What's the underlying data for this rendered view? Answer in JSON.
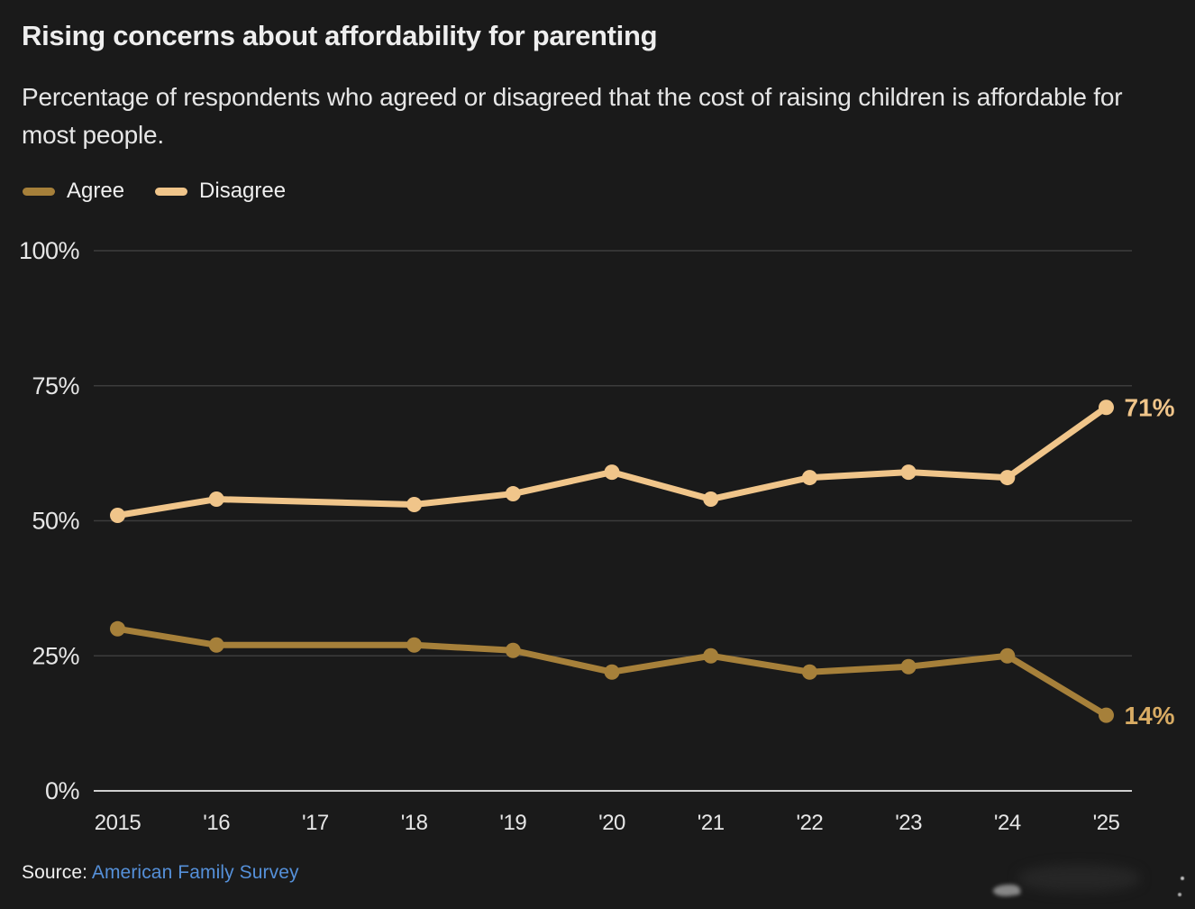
{
  "chart_data": {
    "type": "line",
    "title": "Rising concerns about affordability for parenting",
    "subtitle": "Percentage of respondents who agreed or disagreed that the cost of raising children is affordable for most people.",
    "x_tick_labels": [
      "2015",
      "'16",
      "'17",
      "'18",
      "'19",
      "'20",
      "'21",
      "'22",
      "'23",
      "'24",
      "'25"
    ],
    "x_years": [
      2015,
      2016,
      2017,
      2018,
      2019,
      2020,
      2021,
      2022,
      2023,
      2024,
      2025
    ],
    "y_tick_labels": [
      "100%",
      "75%",
      "50%",
      "25%",
      "0%"
    ],
    "y_ticks": [
      100,
      75,
      50,
      25,
      0
    ],
    "ylim": [
      0,
      100
    ],
    "grid": "horizontal",
    "legend_position": "top-left",
    "missing_years": [
      2017
    ],
    "series": [
      {
        "name": "Agree",
        "color": "#a6803a",
        "label_color": "#d8ab63",
        "end_label": "14%",
        "points": [
          {
            "year": 2015,
            "value": 30
          },
          {
            "year": 2016,
            "value": 27
          },
          {
            "year": 2018,
            "value": 27
          },
          {
            "year": 2019,
            "value": 26
          },
          {
            "year": 2020,
            "value": 22
          },
          {
            "year": 2021,
            "value": 25
          },
          {
            "year": 2022,
            "value": 22
          },
          {
            "year": 2023,
            "value": 23
          },
          {
            "year": 2024,
            "value": 25
          },
          {
            "year": 2025,
            "value": 14
          }
        ]
      },
      {
        "name": "Disagree",
        "color": "#f0c58a",
        "label_color": "#f0c58a",
        "end_label": "71%",
        "points": [
          {
            "year": 2015,
            "value": 51
          },
          {
            "year": 2016,
            "value": 54
          },
          {
            "year": 2018,
            "value": 53
          },
          {
            "year": 2019,
            "value": 55
          },
          {
            "year": 2020,
            "value": 59
          },
          {
            "year": 2021,
            "value": 54
          },
          {
            "year": 2022,
            "value": 58
          },
          {
            "year": 2023,
            "value": 59
          },
          {
            "year": 2024,
            "value": 58
          },
          {
            "year": 2025,
            "value": 71
          }
        ]
      }
    ],
    "style": {
      "background": "#1a1a1a",
      "grid_color": "#3c3c3c",
      "axis_line_color": "#cfcfcf",
      "tick_color": "#e6e6e6"
    }
  },
  "source": {
    "prefix": "Source:",
    "link_text": "American Family Survey",
    "link_color": "#5590d9"
  }
}
